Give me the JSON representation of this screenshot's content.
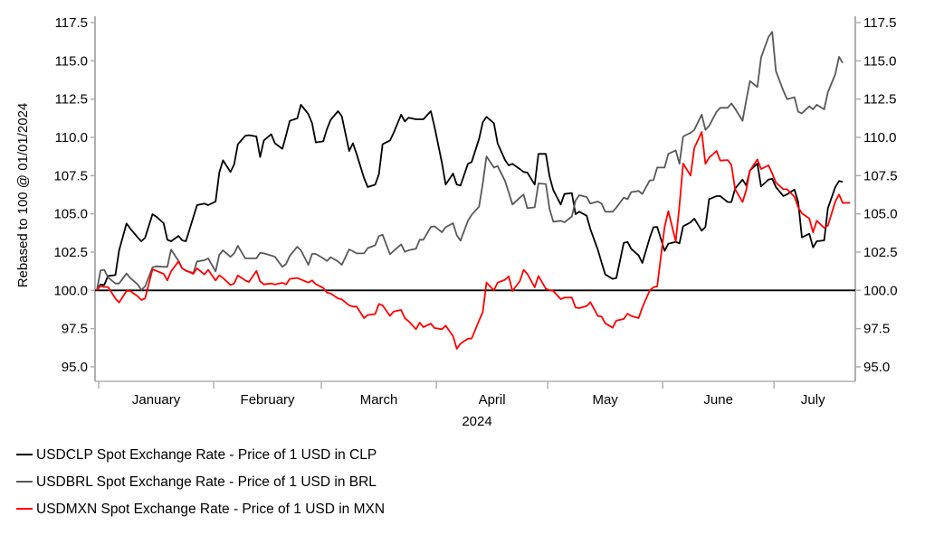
{
  "chart_data": {
    "type": "line",
    "title": "",
    "ylabel": "Rebased to 100 @ 01/01/2024",
    "xlabel": "2024",
    "x_unit": "days since 01/01/2024",
    "xlim": [
      0,
      203
    ],
    "ylim": [
      95,
      117.5
    ],
    "y_ticks": [
      "95.0",
      "97.5",
      "100.0",
      "102.5",
      "105.0",
      "107.5",
      "110.0",
      "112.5",
      "115.0",
      "117.5"
    ],
    "y_tick_values": [
      95,
      97.5,
      100,
      102.5,
      105,
      107.5,
      110,
      112.5,
      115,
      117.5
    ],
    "x_month_labels": [
      "January",
      "February",
      "March",
      "April",
      "May",
      "June",
      "July"
    ],
    "x_month_starts": [
      0,
      31,
      60,
      91,
      121,
      152,
      182,
      203
    ],
    "reference_line": 100,
    "grid": false,
    "legend_position": "bottom-left",
    "series": [
      {
        "name": "USDCLP Spot Exchange Rate - Price of 1 USD in CLP",
        "color": "#000000",
        "x": [
          0,
          1,
          2,
          3,
          5,
          6,
          8,
          9,
          11,
          12,
          13,
          15,
          16,
          18,
          19,
          20,
          22,
          23,
          24,
          26,
          27,
          29,
          30,
          32,
          33,
          34,
          36,
          37,
          38,
          40,
          41,
          43,
          44,
          45,
          47,
          48,
          50,
          51,
          52,
          54,
          55,
          57,
          58,
          59,
          61,
          62,
          63,
          65,
          66,
          68,
          69,
          70,
          72,
          73,
          75,
          76,
          77,
          79,
          80,
          82,
          83,
          84,
          86,
          87,
          88,
          90,
          91,
          93,
          94,
          96,
          97,
          98,
          100,
          101,
          103,
          104,
          105,
          107,
          108,
          110,
          111,
          112,
          114,
          115,
          116,
          118,
          119,
          121,
          122,
          123,
          125,
          126,
          128,
          129,
          130,
          132,
          133,
          135,
          136,
          137,
          139,
          140,
          142,
          143,
          144,
          146,
          147,
          149,
          150,
          151,
          153,
          154,
          156,
          157,
          158,
          160,
          161,
          163,
          164,
          165,
          167,
          168,
          170,
          171,
          172,
          174,
          175,
          176,
          178,
          179,
          181,
          182,
          183,
          185,
          186,
          188,
          189,
          190,
          192,
          193,
          194,
          196,
          197,
          199,
          200,
          201
        ],
        "y": [
          100,
          100.39,
          100.35,
          100.94,
          101.0,
          102.62,
          104.37,
          104.04,
          103.46,
          103.21,
          103.44,
          104.98,
          104.82,
          104.39,
          103.31,
          103.21,
          103.56,
          103.27,
          103.21,
          104.78,
          105.57,
          105.67,
          105.57,
          105.81,
          107.7,
          108.5,
          107.74,
          108.23,
          109.55,
          110.1,
          110.14,
          110.06,
          108.72,
          109.8,
          110.2,
          109.61,
          109.25,
          110.14,
          111.08,
          111.24,
          112.13,
          111.52,
          110.93,
          109.67,
          109.74,
          110.53,
          111.14,
          111.71,
          111.38,
          109.11,
          109.61,
          108.92,
          107.34,
          106.75,
          106.91,
          107.58,
          109.55,
          109.8,
          110.3,
          111.48,
          111.04,
          111.28,
          111.18,
          111.18,
          111.18,
          111.71,
          110.69,
          108.33,
          106.91,
          107.64,
          106.91,
          106.85,
          108.27,
          108.39,
          109.9,
          110.98,
          111.34,
          110.93,
          109.61,
          108.52,
          108.17,
          108.27,
          107.93,
          107.74,
          107.7,
          106.91,
          108.92,
          108.92,
          107.44,
          106.56,
          105.61,
          106.3,
          106.36,
          104.98,
          105.14,
          104.88,
          104.0,
          102.66,
          101.83,
          101.04,
          100.75,
          100.81,
          103.11,
          103.17,
          102.72,
          102.28,
          101.79,
          103.44,
          104.13,
          104.15,
          102.58,
          103.05,
          103.17,
          103.07,
          104.19,
          104.45,
          104.69,
          103.9,
          104.15,
          105.96,
          106.16,
          106.16,
          105.77,
          105.77,
          106.65,
          107.24,
          106.85,
          107.83,
          108.29,
          106.79,
          107.24,
          107.3,
          106.75,
          106.16,
          106.28,
          106.59,
          105.77,
          103.46,
          103.7,
          102.81,
          103.21,
          103.27,
          105.37,
          106.75,
          107.15,
          107.09
        ]
      },
      {
        "name": "USDBRL Spot Exchange Rate - Price of 1 USD in BRL",
        "color": "#595959",
        "x": [
          0,
          1,
          2,
          3,
          5,
          6,
          8,
          9,
          11,
          12,
          13,
          15,
          16,
          18,
          19,
          20,
          22,
          23,
          24,
          26,
          27,
          29,
          30,
          32,
          33,
          34,
          36,
          37,
          38,
          40,
          41,
          43,
          44,
          45,
          47,
          48,
          50,
          51,
          52,
          54,
          55,
          57,
          58,
          59,
          61,
          62,
          63,
          65,
          66,
          68,
          69,
          70,
          72,
          73,
          75,
          76,
          77,
          79,
          80,
          82,
          83,
          84,
          86,
          87,
          88,
          90,
          91,
          93,
          94,
          96,
          97,
          98,
          100,
          101,
          103,
          104,
          105,
          107,
          108,
          110,
          111,
          112,
          114,
          115,
          116,
          118,
          119,
          121,
          122,
          123,
          125,
          126,
          128,
          129,
          130,
          132,
          133,
          135,
          136,
          137,
          139,
          140,
          142,
          143,
          144,
          146,
          147,
          149,
          150,
          151,
          153,
          154,
          156,
          157,
          158,
          160,
          161,
          163,
          164,
          165,
          167,
          168,
          170,
          171,
          172,
          174,
          175,
          176,
          178,
          179,
          181,
          182,
          183,
          185,
          186,
          188,
          189,
          190,
          192,
          193,
          194,
          196,
          197,
          199,
          200,
          201
        ],
        "y": [
          100,
          101.3,
          101.34,
          100.85,
          100.45,
          100.45,
          101.1,
          100.81,
          100.39,
          100.02,
          100.26,
          101.5,
          101.57,
          101.54,
          101.54,
          102.66,
          101.93,
          101.44,
          101.28,
          101.14,
          101.89,
          101.97,
          102.09,
          101.24,
          102.32,
          102.62,
          102.19,
          102.42,
          102.91,
          102.09,
          102.09,
          102.09,
          102.46,
          102.42,
          102.28,
          102.19,
          101.54,
          101.73,
          102.26,
          102.85,
          102.62,
          101.67,
          102.38,
          102.38,
          102.09,
          101.93,
          102.17,
          101.89,
          101.67,
          102.68,
          102.56,
          102.42,
          102.42,
          102.76,
          102.95,
          103.54,
          103.64,
          102.36,
          102.58,
          103.01,
          102.52,
          102.62,
          102.72,
          103.31,
          103.31,
          104.15,
          104.19,
          103.8,
          104.13,
          104.39,
          103.6,
          103.25,
          104.55,
          104.94,
          105.47,
          106.99,
          108.76,
          108.03,
          108.13,
          107.15,
          106.4,
          105.61,
          106.06,
          106.26,
          105.37,
          105.43,
          106.99,
          106.95,
          105.31,
          104.49,
          104.55,
          104.45,
          104.82,
          105.87,
          106.22,
          106.1,
          105.67,
          105.81,
          105.67,
          105.14,
          105.14,
          105.41,
          106.06,
          105.96,
          106.42,
          106.5,
          106.3,
          107.19,
          107.2,
          108.03,
          108.03,
          108.92,
          109.15,
          108.27,
          110.06,
          110.3,
          110.49,
          111.48,
          110.49,
          110.75,
          111.67,
          111.93,
          111.93,
          112.22,
          111.87,
          111.08,
          112.42,
          113.68,
          113.29,
          115.22,
          116.56,
          116.89,
          114.33,
          113.05,
          112.5,
          112.62,
          111.67,
          111.57,
          112.03,
          111.83,
          112.13,
          111.83,
          112.95,
          114.13,
          115.26,
          114.86
        ]
      },
      {
        "name": "USDMXN Spot Exchange Rate - Price of 1 USD in MXN",
        "color": "#ff0000",
        "x": [
          0,
          1,
          2,
          3,
          5,
          6,
          8,
          9,
          11,
          12,
          13,
          15,
          16,
          18,
          19,
          20,
          22,
          23,
          24,
          26,
          27,
          29,
          30,
          32,
          33,
          34,
          36,
          37,
          38,
          40,
          41,
          43,
          44,
          45,
          47,
          48,
          50,
          51,
          52,
          54,
          55,
          57,
          58,
          59,
          61,
          62,
          63,
          65,
          66,
          68,
          69,
          70,
          72,
          73,
          75,
          76,
          77,
          79,
          80,
          82,
          83,
          84,
          86,
          87,
          88,
          90,
          91,
          93,
          94,
          96,
          97,
          98,
          100,
          101,
          103,
          104,
          105,
          107,
          108,
          110,
          111,
          112,
          114,
          115,
          116,
          118,
          119,
          121,
          122,
          123,
          125,
          126,
          128,
          129,
          130,
          132,
          133,
          135,
          136,
          137,
          139,
          140,
          142,
          143,
          144,
          146,
          147,
          149,
          150,
          151,
          153,
          154,
          156,
          157,
          158,
          160,
          161,
          163,
          164,
          165,
          167,
          168,
          170,
          171,
          172,
          174,
          175,
          176,
          178,
          179,
          181,
          182,
          183,
          185,
          186,
          188,
          189,
          190,
          192,
          193,
          194,
          196,
          197,
          199,
          200,
          201,
          203
        ],
        "y": [
          100,
          100.3,
          100.22,
          100.22,
          99.47,
          99.21,
          99.96,
          99.96,
          99.61,
          99.37,
          99.47,
          101.38,
          101.28,
          101.08,
          100.65,
          101.24,
          101.89,
          101.44,
          101.3,
          101.08,
          101.44,
          101.04,
          101.34,
          100.65,
          100.98,
          100.81,
          100.35,
          100.45,
          100.98,
          100.65,
          100.55,
          101.28,
          100.59,
          100.39,
          100.45,
          100.39,
          100.49,
          100.39,
          100.75,
          100.81,
          100.71,
          100.51,
          100.65,
          100.41,
          100.16,
          99.86,
          99.8,
          99.47,
          99.41,
          99.02,
          98.94,
          98.94,
          98.19,
          98.39,
          98.45,
          99.11,
          99.02,
          98.33,
          98.62,
          98.72,
          98.19,
          97.99,
          97.46,
          97.89,
          97.6,
          97.83,
          97.54,
          97.46,
          97.7,
          97.01,
          96.18,
          96.52,
          96.85,
          96.85,
          98.03,
          98.58,
          100.51,
          100,
          100.51,
          100.69,
          100.91,
          99.96,
          100.61,
          101.34,
          101.08,
          100.2,
          100.94,
          100.1,
          100.02,
          99.96,
          99.43,
          99.53,
          99.53,
          98.88,
          98.84,
          98.98,
          99.23,
          98.33,
          98.29,
          97.85,
          97.56,
          98.03,
          98.13,
          98.48,
          98.33,
          98.19,
          98.88,
          100,
          100.2,
          100.26,
          104.15,
          105.18,
          103.21,
          105.53,
          108.29,
          107.5,
          109.31,
          110.35,
          108.27,
          108.68,
          109.11,
          108.48,
          108.52,
          108.19,
          106.61,
          105.77,
          106.56,
          107.83,
          108.56,
          107.93,
          108.17,
          107.64,
          107.05,
          106.61,
          106.61,
          106.12,
          105.43,
          105.04,
          104.69,
          103.8,
          104.55,
          104.09,
          104.23,
          105.81,
          106.26,
          105.71,
          105.73
        ]
      }
    ]
  }
}
